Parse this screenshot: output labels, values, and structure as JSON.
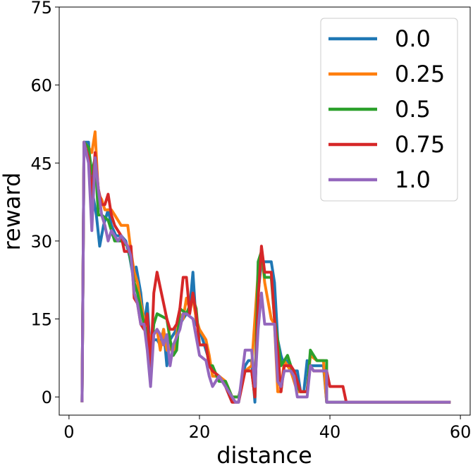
{
  "chart_data": {
    "type": "line",
    "title": "",
    "xlabel": "distance",
    "ylabel": "reward",
    "xlim": [
      -1.5,
      61.5
    ],
    "ylim": [
      -3.5,
      75
    ],
    "xticks": [
      0,
      20,
      40,
      60
    ],
    "yticks": [
      0,
      15,
      30,
      45,
      60,
      75
    ],
    "grid": false,
    "legend": "top-right",
    "series": [
      {
        "name": "0.0",
        "color": "#1f77b4",
        "points": [
          [
            2.0,
            -1
          ],
          [
            2.3,
            49
          ],
          [
            3.0,
            49
          ],
          [
            3.5,
            40
          ],
          [
            4.2,
            35
          ],
          [
            4.7,
            29
          ],
          [
            5.3,
            33
          ],
          [
            6.0,
            36
          ],
          [
            6.5,
            33
          ],
          [
            7.2,
            31
          ],
          [
            8.0,
            31
          ],
          [
            8.7,
            30
          ],
          [
            9.3,
            27
          ],
          [
            10.0,
            22
          ],
          [
            10.3,
            25
          ],
          [
            11.0,
            20
          ],
          [
            11.5,
            14
          ],
          [
            12.0,
            18
          ],
          [
            12.5,
            8
          ],
          [
            13.0,
            11
          ],
          [
            13.5,
            11
          ],
          [
            14.0,
            10
          ],
          [
            14.5,
            13
          ],
          [
            15.0,
            6
          ],
          [
            15.5,
            11
          ],
          [
            16.0,
            12
          ],
          [
            16.5,
            13
          ],
          [
            17.0,
            14
          ],
          [
            17.5,
            15
          ],
          [
            18.0,
            16
          ],
          [
            18.5,
            17
          ],
          [
            19.0,
            24
          ],
          [
            19.5,
            14
          ],
          [
            20.0,
            13
          ],
          [
            21.0,
            9
          ],
          [
            21.5,
            7
          ],
          [
            22.0,
            5
          ],
          [
            23.0,
            4
          ],
          [
            24.0,
            2
          ],
          [
            25.0,
            -1
          ],
          [
            26.0,
            -1
          ],
          [
            27.0,
            6
          ],
          [
            27.5,
            7
          ],
          [
            28.0,
            7
          ],
          [
            28.5,
            -1
          ],
          [
            29.0,
            20
          ],
          [
            29.5,
            26
          ],
          [
            31.0,
            26
          ],
          [
            31.5,
            22
          ],
          [
            32.0,
            11
          ],
          [
            32.5,
            8
          ],
          [
            33.0,
            6
          ],
          [
            33.5,
            7
          ],
          [
            34.0,
            6
          ],
          [
            34.5,
            5
          ],
          [
            35.0,
            5
          ],
          [
            35.5,
            1
          ],
          [
            36.0,
            1
          ],
          [
            36.5,
            7
          ],
          [
            37.0,
            6
          ],
          [
            39.0,
            6
          ],
          [
            39.5,
            -1
          ],
          [
            58.5,
            -1
          ]
        ]
      },
      {
        "name": "0.25",
        "color": "#ff7f0e",
        "points": [
          [
            2.0,
            -1
          ],
          [
            2.3,
            49
          ],
          [
            3.0,
            48
          ],
          [
            3.5,
            47
          ],
          [
            4.0,
            51
          ],
          [
            4.5,
            39
          ],
          [
            5.0,
            38
          ],
          [
            5.5,
            36
          ],
          [
            6.5,
            36
          ],
          [
            7.0,
            35
          ],
          [
            7.5,
            34
          ],
          [
            8.0,
            33
          ],
          [
            9.0,
            33
          ],
          [
            9.5,
            28
          ],
          [
            10.0,
            24
          ],
          [
            10.5,
            22
          ],
          [
            11.0,
            18
          ],
          [
            11.5,
            15
          ],
          [
            12.0,
            13
          ],
          [
            12.5,
            11
          ],
          [
            13.0,
            12
          ],
          [
            13.5,
            13
          ],
          [
            14.0,
            9
          ],
          [
            14.5,
            13
          ],
          [
            15.0,
            9
          ],
          [
            15.5,
            10
          ],
          [
            16.0,
            8
          ],
          [
            17.0,
            16
          ],
          [
            17.5,
            15
          ],
          [
            18.0,
            19
          ],
          [
            18.5,
            17
          ],
          [
            19.0,
            19
          ],
          [
            19.5,
            15
          ],
          [
            20.0,
            13
          ],
          [
            21.0,
            11
          ],
          [
            21.5,
            8
          ],
          [
            22.0,
            4
          ],
          [
            23.0,
            4
          ],
          [
            24.0,
            3
          ],
          [
            25.0,
            0
          ],
          [
            26.0,
            0
          ],
          [
            27.0,
            5
          ],
          [
            28.0,
            6
          ],
          [
            29.0,
            24
          ],
          [
            29.5,
            28
          ],
          [
            30.0,
            22
          ],
          [
            31.0,
            15
          ],
          [
            31.5,
            14
          ],
          [
            32.0,
            1
          ],
          [
            32.5,
            1
          ],
          [
            33.0,
            7
          ],
          [
            33.5,
            6
          ],
          [
            34.0,
            5
          ],
          [
            35.0,
            1
          ],
          [
            36.5,
            1
          ],
          [
            37.0,
            8
          ],
          [
            38.0,
            7
          ],
          [
            39.0,
            7
          ],
          [
            39.5,
            -1
          ],
          [
            58.5,
            -1
          ]
        ]
      },
      {
        "name": "0.5",
        "color": "#2ca02c",
        "points": [
          [
            2.0,
            -1
          ],
          [
            2.3,
            49
          ],
          [
            3.0,
            48
          ],
          [
            3.5,
            43
          ],
          [
            4.0,
            46
          ],
          [
            4.5,
            35
          ],
          [
            5.0,
            35
          ],
          [
            6.0,
            34
          ],
          [
            7.0,
            30
          ],
          [
            8.0,
            30
          ],
          [
            9.0,
            29
          ],
          [
            9.5,
            26
          ],
          [
            10.0,
            22
          ],
          [
            10.5,
            20
          ],
          [
            11.0,
            17
          ],
          [
            11.5,
            14
          ],
          [
            12.0,
            12
          ],
          [
            12.5,
            7
          ],
          [
            13.0,
            14
          ],
          [
            13.5,
            16
          ],
          [
            15.0,
            15
          ],
          [
            15.5,
            11
          ],
          [
            16.0,
            8
          ],
          [
            16.5,
            9
          ],
          [
            17.0,
            17
          ],
          [
            18.0,
            16
          ],
          [
            19.0,
            19
          ],
          [
            19.5,
            17
          ],
          [
            20.0,
            10
          ],
          [
            21.0,
            10
          ],
          [
            21.5,
            6
          ],
          [
            22.0,
            6
          ],
          [
            23.0,
            3
          ],
          [
            24.0,
            3
          ],
          [
            25.0,
            0
          ],
          [
            26.0,
            0
          ],
          [
            27.0,
            5
          ],
          [
            28.0,
            5
          ],
          [
            28.5,
            0
          ],
          [
            29.0,
            26
          ],
          [
            29.5,
            28
          ],
          [
            30.0,
            23
          ],
          [
            31.0,
            23
          ],
          [
            31.5,
            15
          ],
          [
            32.0,
            11
          ],
          [
            32.5,
            6
          ],
          [
            33.0,
            7
          ],
          [
            33.5,
            8
          ],
          [
            34.0,
            6
          ],
          [
            35.0,
            2
          ],
          [
            35.5,
            1
          ],
          [
            36.5,
            1
          ],
          [
            37.0,
            9
          ],
          [
            38.0,
            7
          ],
          [
            39.5,
            7
          ],
          [
            39.5,
            -1
          ],
          [
            58.5,
            -1
          ]
        ]
      },
      {
        "name": "0.75",
        "color": "#d62728",
        "points": [
          [
            2.0,
            -1
          ],
          [
            2.3,
            49
          ],
          [
            3.0,
            46
          ],
          [
            3.5,
            38
          ],
          [
            4.0,
            47
          ],
          [
            4.5,
            40
          ],
          [
            5.0,
            37
          ],
          [
            5.5,
            37
          ],
          [
            6.0,
            39
          ],
          [
            6.5,
            35
          ],
          [
            7.0,
            33
          ],
          [
            7.5,
            32
          ],
          [
            8.0,
            31
          ],
          [
            8.5,
            28
          ],
          [
            9.0,
            28
          ],
          [
            9.5,
            29
          ],
          [
            10.0,
            19
          ],
          [
            10.5,
            18
          ],
          [
            11.0,
            14
          ],
          [
            11.5,
            13
          ],
          [
            12.0,
            16
          ],
          [
            12.5,
            5
          ],
          [
            13.0,
            20
          ],
          [
            13.5,
            24
          ],
          [
            14.0,
            21
          ],
          [
            14.5,
            18
          ],
          [
            15.0,
            15
          ],
          [
            15.5,
            13
          ],
          [
            16.0,
            13
          ],
          [
            16.5,
            14
          ],
          [
            17.0,
            17
          ],
          [
            17.5,
            23
          ],
          [
            18.0,
            23
          ],
          [
            18.5,
            16
          ],
          [
            19.0,
            20
          ],
          [
            19.5,
            16
          ],
          [
            20.0,
            10
          ],
          [
            20.5,
            10
          ],
          [
            21.0,
            10
          ],
          [
            21.5,
            6
          ],
          [
            22.0,
            5
          ],
          [
            23.0,
            4
          ],
          [
            24.0,
            2
          ],
          [
            25.0,
            -1
          ],
          [
            26.0,
            -1
          ],
          [
            27.0,
            5
          ],
          [
            28.0,
            5
          ],
          [
            28.5,
            0
          ],
          [
            29.0,
            19
          ],
          [
            29.5,
            29
          ],
          [
            30.0,
            24
          ],
          [
            31.0,
            24
          ],
          [
            31.5,
            15
          ],
          [
            32.0,
            9
          ],
          [
            32.5,
            1
          ],
          [
            33.0,
            6
          ],
          [
            34.0,
            6
          ],
          [
            34.5,
            5
          ],
          [
            35.0,
            3
          ],
          [
            35.5,
            1
          ],
          [
            36.5,
            1
          ],
          [
            37.0,
            6
          ],
          [
            37.5,
            5
          ],
          [
            39.5,
            5
          ],
          [
            40.0,
            2
          ],
          [
            42.0,
            2
          ],
          [
            42.5,
            -1
          ],
          [
            58.5,
            -1
          ]
        ]
      },
      {
        "name": "1.0",
        "color": "#9467bd",
        "points": [
          [
            2.0,
            -1
          ],
          [
            2.3,
            49
          ],
          [
            3.0,
            45
          ],
          [
            3.5,
            32
          ],
          [
            4.0,
            46
          ],
          [
            4.5,
            40
          ],
          [
            5.0,
            35
          ],
          [
            5.5,
            33
          ],
          [
            6.0,
            30
          ],
          [
            6.5,
            32
          ],
          [
            7.0,
            31
          ],
          [
            7.5,
            30
          ],
          [
            8.0,
            31
          ],
          [
            9.0,
            29
          ],
          [
            9.5,
            27
          ],
          [
            10.0,
            20
          ],
          [
            10.5,
            18
          ],
          [
            11.0,
            14
          ],
          [
            11.5,
            14
          ],
          [
            12.0,
            9
          ],
          [
            12.5,
            2
          ],
          [
            13.0,
            12
          ],
          [
            13.5,
            13
          ],
          [
            14.0,
            12
          ],
          [
            14.5,
            10
          ],
          [
            15.0,
            12
          ],
          [
            15.5,
            6
          ],
          [
            16.0,
            10
          ],
          [
            17.0,
            13
          ],
          [
            17.5,
            16
          ],
          [
            18.0,
            16
          ],
          [
            19.0,
            15
          ],
          [
            20.0,
            8
          ],
          [
            21.0,
            7
          ],
          [
            21.5,
            4
          ],
          [
            22.0,
            2
          ],
          [
            23.0,
            4
          ],
          [
            24.0,
            2
          ],
          [
            25.0,
            0
          ],
          [
            25.5,
            -1
          ],
          [
            26.0,
            -1
          ],
          [
            27.0,
            9
          ],
          [
            28.0,
            9
          ],
          [
            28.5,
            2
          ],
          [
            29.0,
            13
          ],
          [
            29.5,
            20
          ],
          [
            30.0,
            14
          ],
          [
            31.5,
            14
          ],
          [
            32.0,
            3
          ],
          [
            32.5,
            2
          ],
          [
            33.0,
            5
          ],
          [
            34.0,
            5
          ],
          [
            34.5,
            4
          ],
          [
            35.0,
            0
          ],
          [
            36.5,
            0
          ],
          [
            37.0,
            6
          ],
          [
            37.5,
            5
          ],
          [
            39.5,
            5
          ],
          [
            39.5,
            -1
          ],
          [
            58.5,
            -1
          ]
        ]
      }
    ]
  }
}
